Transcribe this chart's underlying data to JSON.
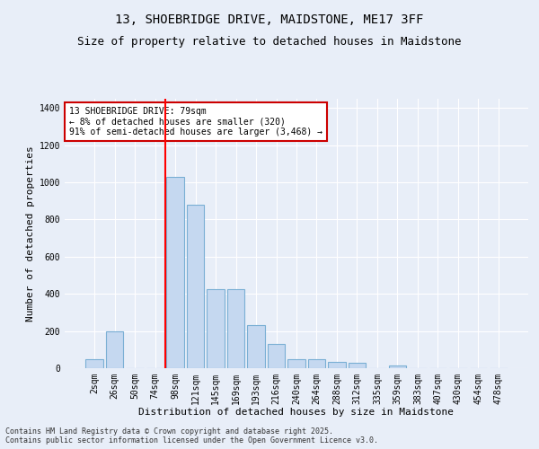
{
  "title": "13, SHOEBRIDGE DRIVE, MAIDSTONE, ME17 3FF",
  "subtitle": "Size of property relative to detached houses in Maidstone",
  "xlabel": "Distribution of detached houses by size in Maidstone",
  "ylabel": "Number of detached properties",
  "categories": [
    "2sqm",
    "26sqm",
    "50sqm",
    "74sqm",
    "98sqm",
    "121sqm",
    "145sqm",
    "169sqm",
    "193sqm",
    "216sqm",
    "240sqm",
    "264sqm",
    "288sqm",
    "312sqm",
    "335sqm",
    "359sqm",
    "383sqm",
    "407sqm",
    "430sqm",
    "454sqm",
    "478sqm"
  ],
  "values": [
    50,
    200,
    0,
    0,
    1030,
    880,
    425,
    425,
    230,
    130,
    50,
    50,
    35,
    30,
    0,
    15,
    0,
    0,
    0,
    0,
    0
  ],
  "bar_color": "#c5d8f0",
  "bar_edge_color": "#7aafd4",
  "red_line_x": 3.5,
  "annotation_text": "13 SHOEBRIDGE DRIVE: 79sqm\n← 8% of detached houses are smaller (320)\n91% of semi-detached houses are larger (3,468) →",
  "annotation_box_color": "#ffffff",
  "annotation_box_edge_color": "#cc0000",
  "footer_text": "Contains HM Land Registry data © Crown copyright and database right 2025.\nContains public sector information licensed under the Open Government Licence v3.0.",
  "background_color": "#e8eef8",
  "ylim": [
    0,
    1450
  ],
  "yticks": [
    0,
    200,
    400,
    600,
    800,
    1000,
    1200,
    1400
  ],
  "title_fontsize": 10,
  "subtitle_fontsize": 9,
  "xlabel_fontsize": 8,
  "ylabel_fontsize": 8,
  "tick_fontsize": 7,
  "annotation_fontsize": 7,
  "footer_fontsize": 6
}
